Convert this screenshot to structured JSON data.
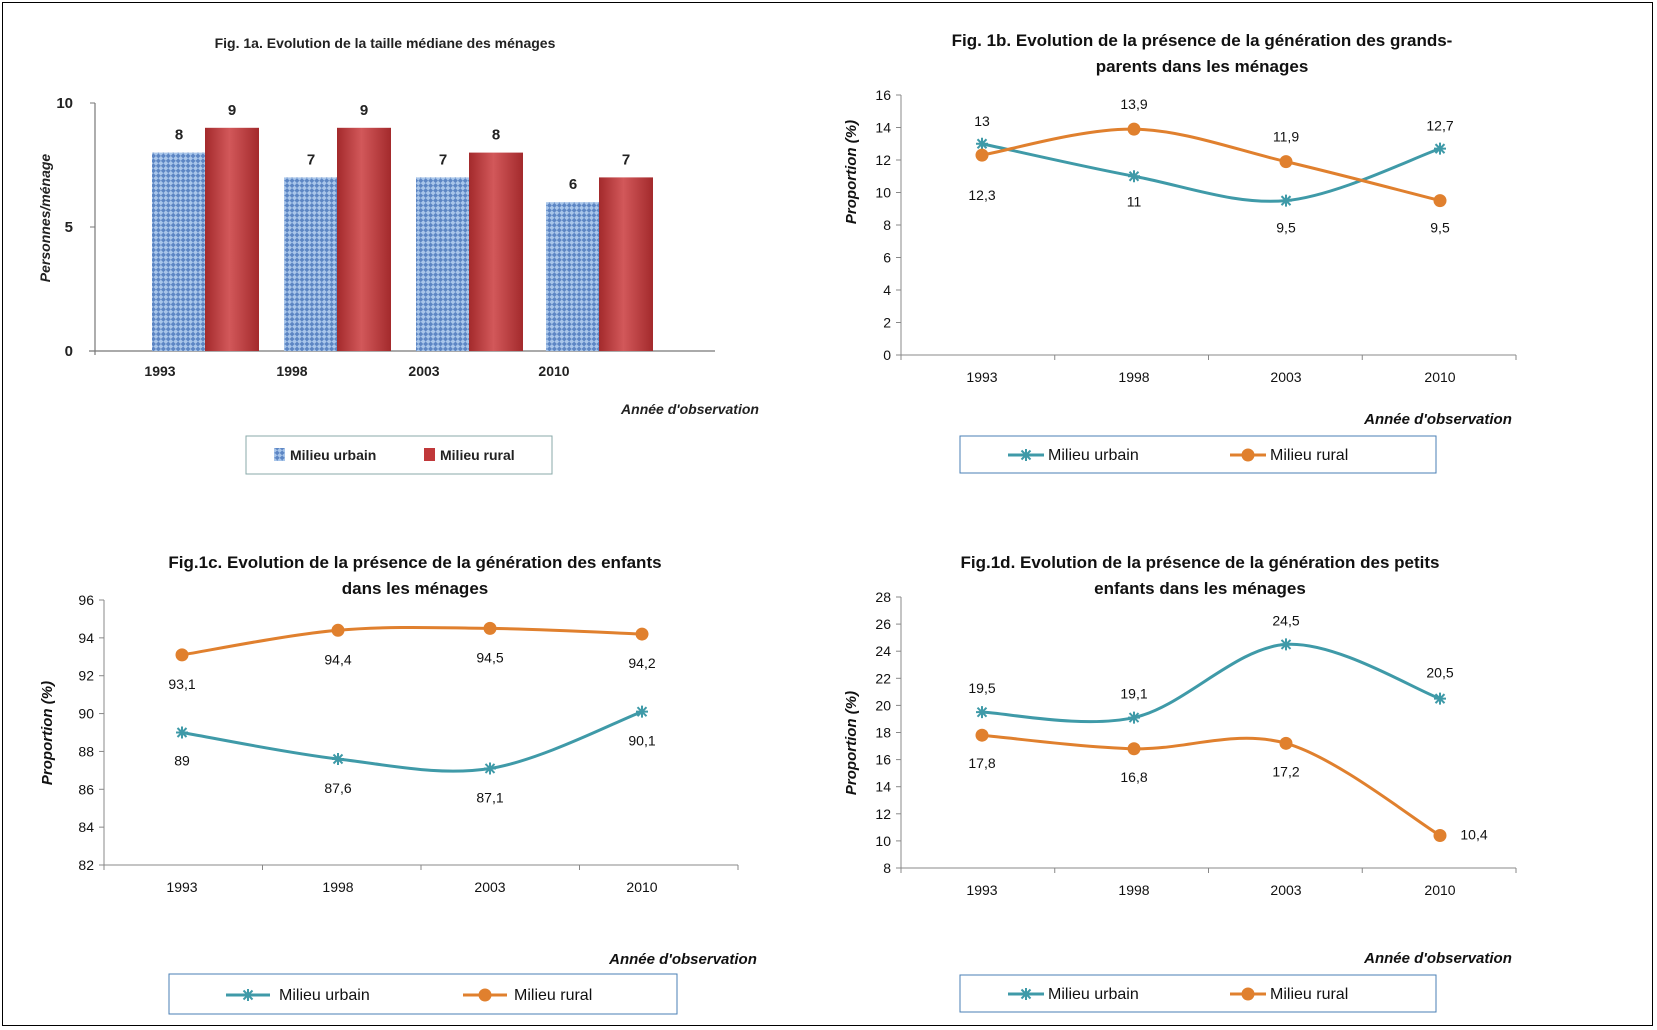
{
  "colors": {
    "urban_line": "#3f9aa8",
    "rural_line": "#e0802e",
    "urban_bar": "#7ea7d8",
    "rural_bar": "#c0383a"
  },
  "chart_data": [
    {
      "id": "fig1a",
      "type": "bar",
      "title": "Fig. 1a.  Evolution de la taille médiane des ménages",
      "xlabel": "Année d'observation",
      "ylabel": "Personnes/ménage",
      "ylim": [
        0,
        10
      ],
      "yticks": [
        "0",
        "5",
        "10"
      ],
      "categories": [
        "1993",
        "1998",
        "2003",
        "2010"
      ],
      "series": [
        {
          "name": "Milieu urbain",
          "values": [
            8,
            7,
            7,
            6
          ],
          "labels": [
            "8",
            "7",
            "7",
            "6"
          ]
        },
        {
          "name": "Milieu rural",
          "values": [
            9,
            9,
            8,
            7
          ],
          "labels": [
            "9",
            "9",
            "8",
            "7"
          ]
        }
      ],
      "legend": "bottom"
    },
    {
      "id": "fig1b",
      "type": "line",
      "title_lines": [
        "Fig. 1b.  Evolution de la présence de la génération des grands-",
        "parents dans les ménages"
      ],
      "xlabel": "Année d'observation",
      "ylabel": "Proportion (%)",
      "ylim": [
        0,
        16
      ],
      "yticks": [
        "0",
        "2",
        "4",
        "6",
        "8",
        "10",
        "12",
        "14",
        "16"
      ],
      "categories": [
        "1993",
        "1998",
        "2003",
        "2010"
      ],
      "series": [
        {
          "name": "Milieu urbain",
          "values": [
            13,
            11,
            9.5,
            12.7
          ],
          "labels": [
            "13",
            "11",
            "9,5",
            "12,7"
          ]
        },
        {
          "name": "Milieu rural",
          "values": [
            12.3,
            13.9,
            11.9,
            9.5
          ],
          "labels": [
            "12,3",
            "13,9",
            "11,9",
            "9,5"
          ]
        }
      ],
      "legend": "bottom"
    },
    {
      "id": "fig1c",
      "type": "line",
      "title_lines": [
        "Fig.1c.  Evolution de la présence de la génération des enfants",
        "dans les ménages"
      ],
      "xlabel": "Année d'observation",
      "ylabel": "Proportion (%)",
      "ylim": [
        82,
        96
      ],
      "yticks": [
        "82",
        "84",
        "86",
        "88",
        "90",
        "92",
        "94",
        "96"
      ],
      "categories": [
        "1993",
        "1998",
        "2003",
        "2010"
      ],
      "series": [
        {
          "name": "Milieu urbain",
          "values": [
            89,
            87.6,
            87.1,
            90.1
          ],
          "labels": [
            "89",
            "87,6",
            "87,1",
            "90,1"
          ]
        },
        {
          "name": "Milieu rural",
          "values": [
            93.1,
            94.4,
            94.5,
            94.2
          ],
          "labels": [
            "93,1",
            "94,4",
            "94,5",
            "94,2"
          ]
        }
      ],
      "legend": "bottom"
    },
    {
      "id": "fig1d",
      "type": "line",
      "title_lines": [
        "Fig.1d.  Evolution de la présence de la génération des petits",
        "enfants dans les ménages"
      ],
      "xlabel": "Année d'observation",
      "ylabel": "Proportion (%)",
      "ylim": [
        8,
        28
      ],
      "yticks": [
        "8",
        "10",
        "12",
        "14",
        "16",
        "18",
        "20",
        "22",
        "24",
        "26",
        "28"
      ],
      "categories": [
        "1993",
        "1998",
        "2003",
        "2010"
      ],
      "series": [
        {
          "name": "Milieu urbain",
          "values": [
            19.5,
            19.1,
            24.5,
            20.5
          ],
          "labels": [
            "19,5",
            "19,1",
            "24,5",
            "20,5"
          ]
        },
        {
          "name": "Milieu rural",
          "values": [
            17.8,
            16.8,
            17.2,
            10.4
          ],
          "labels": [
            "17,8",
            "16,8",
            "17,2",
            "10,4"
          ]
        }
      ],
      "legend": "bottom"
    }
  ]
}
